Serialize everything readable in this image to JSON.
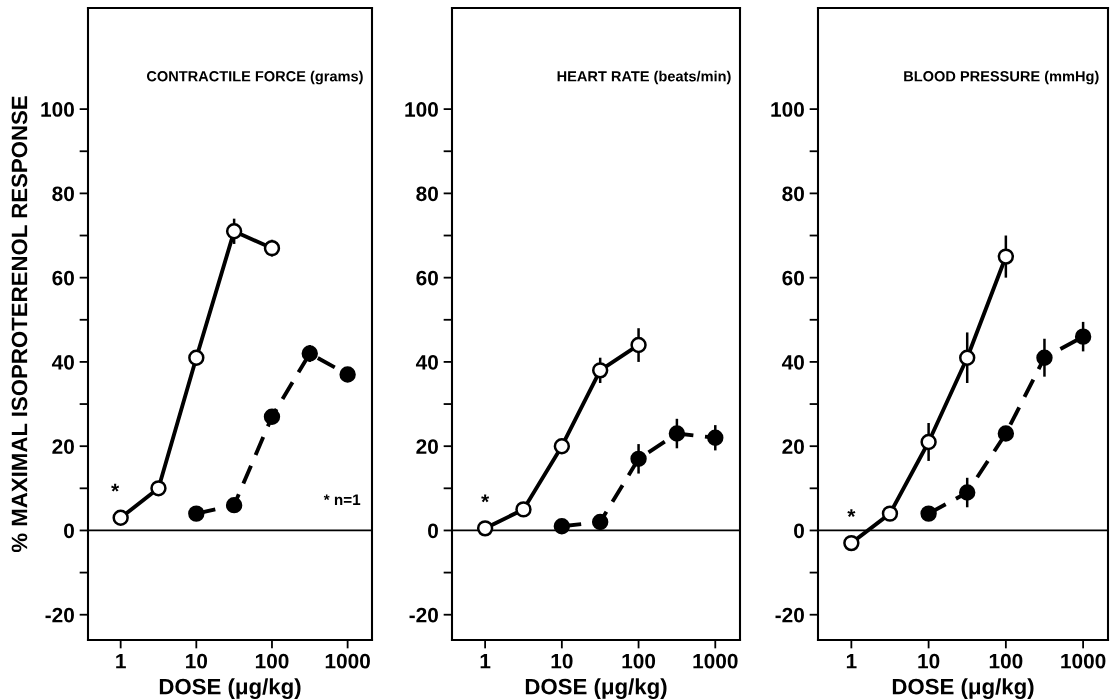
{
  "chart_data": [
    {
      "type": "line",
      "title": "CONTRACTILE FORCE (grams)",
      "xlabel": "DOSE (μg/kg)",
      "ylabel": "% MAXIMAL ISOPROTERENOL RESPONSE",
      "log": "x",
      "marker": "circle",
      "xlim": [
        0.37,
        2100
      ],
      "xticks": [
        1,
        10,
        100,
        1000
      ],
      "ylim": [
        -26,
        124
      ],
      "yticks": [
        -20,
        {
          "value": -10,
          "label": null
        },
        0,
        {
          "value": 10,
          "label": null
        },
        20,
        {
          "value": 30,
          "label": null
        },
        40,
        {
          "value": 50,
          "label": null
        },
        60,
        {
          "value": 70,
          "label": null
        },
        80,
        {
          "value": 90,
          "label": null
        },
        100
      ],
      "ref_lines": [
        {
          "axis": "y",
          "value": 0,
          "color": "#000000"
        }
      ],
      "series": [
        {
          "color": "#000000",
          "line_style": "solid",
          "x": [
            1,
            3.16,
            10,
            31.6,
            100
          ],
          "values": [
            3,
            10,
            41,
            71,
            67
          ],
          "errors": [
            null,
            null,
            null,
            3,
            2
          ]
        },
        {
          "color": "#000000",
          "line_style": "dashed",
          "x": [
            10,
            31.6,
            100,
            316,
            1000
          ],
          "values": [
            4,
            6,
            27,
            42,
            37
          ],
          "errors": [
            null,
            null,
            null,
            2,
            null
          ]
        }
      ],
      "annotations": [
        "*",
        "* n=1"
      ]
    },
    {
      "type": "line",
      "title": "HEART RATE (beats/min)",
      "xlabel": "DOSE (μg/kg)",
      "log": "x",
      "marker": "circle",
      "xlim": [
        0.37,
        2100
      ],
      "xticks": [
        1,
        10,
        100,
        1000
      ],
      "ylim": [
        -26,
        124
      ],
      "yticks": [
        -20,
        {
          "value": -10,
          "label": null
        },
        0,
        {
          "value": 10,
          "label": null
        },
        20,
        {
          "value": 30,
          "label": null
        },
        40,
        {
          "value": 50,
          "label": null
        },
        60,
        {
          "value": 70,
          "label": null
        },
        80,
        {
          "value": 90,
          "label": null
        },
        100
      ],
      "ref_lines": [
        {
          "axis": "y",
          "value": 0,
          "color": "#000000"
        }
      ],
      "series": [
        {
          "color": "#000000",
          "line_style": "solid",
          "x": [
            1,
            3.16,
            10,
            31.6,
            100
          ],
          "values": [
            0.5,
            5,
            20,
            38,
            44
          ],
          "errors": [
            null,
            null,
            null,
            3,
            4
          ]
        },
        {
          "color": "#000000",
          "line_style": "dashed",
          "x": [
            10,
            31.6,
            100,
            316,
            1000
          ],
          "values": [
            1,
            2,
            17,
            23,
            22
          ],
          "errors": [
            null,
            null,
            3.5,
            3.5,
            3
          ]
        }
      ],
      "annotations": [
        "*"
      ]
    },
    {
      "type": "line",
      "title": "BLOOD PRESSURE (mmHg)",
      "xlabel": "DOSE (μg/kg)",
      "log": "x",
      "marker": "circle",
      "xlim": [
        0.37,
        2100
      ],
      "xticks": [
        1,
        10,
        100,
        1000
      ],
      "ylim": [
        -26,
        124
      ],
      "yticks": [
        -20,
        {
          "value": -10,
          "label": null
        },
        0,
        {
          "value": 10,
          "label": null
        },
        20,
        {
          "value": 30,
          "label": null
        },
        40,
        {
          "value": 50,
          "label": null
        },
        60,
        {
          "value": 70,
          "label": null
        },
        80,
        {
          "value": 90,
          "label": null
        },
        100
      ],
      "ref_lines": [
        {
          "axis": "y",
          "value": 0,
          "color": "#000000"
        }
      ],
      "series": [
        {
          "color": "#000000",
          "line_style": "solid",
          "x": [
            1,
            3.16,
            10,
            31.6,
            100
          ],
          "values": [
            -3,
            4,
            21,
            41,
            65
          ],
          "errors": [
            null,
            null,
            4.5,
            6,
            5
          ]
        },
        {
          "color": "#000000",
          "line_style": "dashed",
          "x": [
            10,
            31.6,
            100,
            316,
            1000
          ],
          "values": [
            4,
            9,
            23,
            41,
            46
          ],
          "errors": [
            null,
            3.5,
            null,
            4.5,
            3.5
          ]
        }
      ],
      "annotations": [
        "*"
      ]
    }
  ]
}
